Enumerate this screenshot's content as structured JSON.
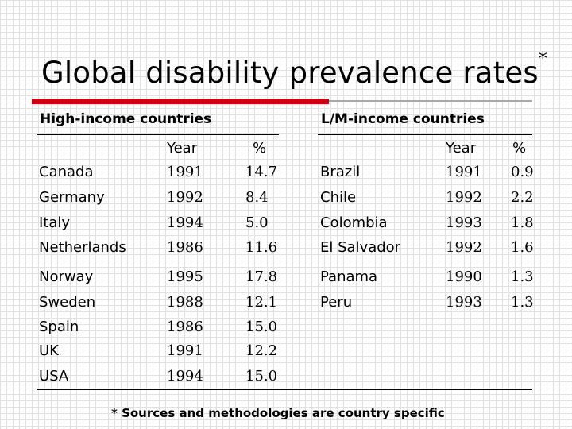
{
  "title": "Global disability prevalence rates",
  "title_mark": "*",
  "high": {
    "heading": "High-income countries",
    "col_year": "Year",
    "col_pct": "%",
    "rows": [
      {
        "country": "Canada",
        "year": "1991",
        "pct": "14.7"
      },
      {
        "country": "Germany",
        "year": "1992",
        "pct": "8.4"
      },
      {
        "country": "Italy",
        "year": "1994",
        "pct": "5.0"
      },
      {
        "country": "Netherlands",
        "year": "1986",
        "pct": "11.6"
      },
      {
        "country": "Norway",
        "year": "1995",
        "pct": "17.8"
      },
      {
        "country": "Sweden",
        "year": "1988",
        "pct": "12.1"
      },
      {
        "country": "Spain",
        "year": "1986",
        "pct": "15.0"
      },
      {
        "country": "UK",
        "year": "1991",
        "pct": "12.2"
      },
      {
        "country": "USA",
        "year": "1994",
        "pct": "15.0"
      }
    ]
  },
  "low": {
    "heading": "L/M-income countries",
    "col_year": "Year",
    "col_pct": "%",
    "rows": [
      {
        "country": "Brazil",
        "year": "1991",
        "pct": "0.9"
      },
      {
        "country": "Chile",
        "year": "1992",
        "pct": "2.2"
      },
      {
        "country": "Colombia",
        "year": "1993",
        "pct": "1.8"
      },
      {
        "country": "El Salvador",
        "year": "1992",
        "pct": "1.6"
      },
      {
        "country": "Panama",
        "year": "1990",
        "pct": "1.3"
      },
      {
        "country": "Peru",
        "year": "1993",
        "pct": "1.3"
      }
    ]
  },
  "footnote": "* Sources and methodologies are country specific"
}
